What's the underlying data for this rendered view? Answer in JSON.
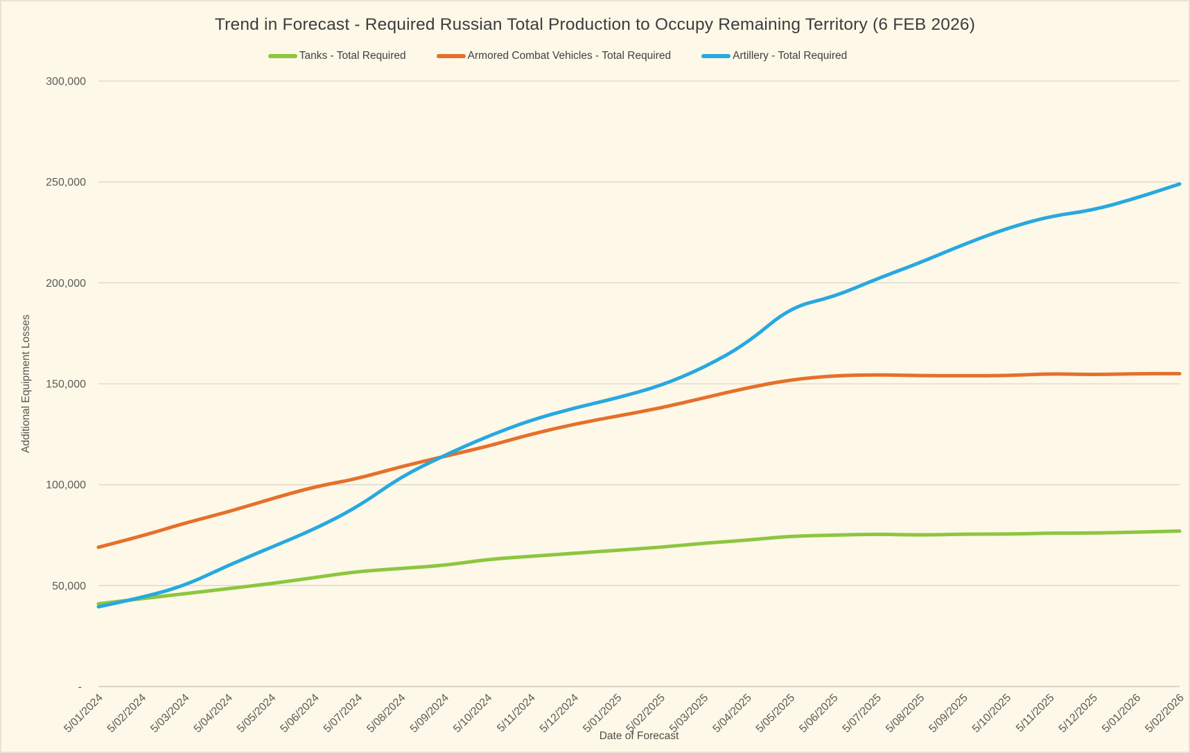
{
  "title": "Trend in Forecast - Required Russian Total Production to Occupy Remaining Territory (6 FEB 2026)",
  "y_axis": {
    "title": "Additional Equipment Losses",
    "step": 50000,
    "tick_labels": [
      "-",
      "50,000",
      "100,000",
      "150,000",
      "200,000",
      "250,000",
      "300,000"
    ]
  },
  "x_axis": {
    "title": "Date of Forecast"
  },
  "colors": {
    "background": "#FDF8E8",
    "gridline": "#DAD8CF",
    "axis_line": "#C9C7BD",
    "tick_text": "#5B5B57",
    "title_text": "#3C3C3C",
    "tanks_green": "#8DC63F",
    "acv_orange": "#E5702B",
    "artillery_blue": "#28A8E0"
  },
  "chart_data": {
    "type": "line",
    "title": "Trend in Forecast - Required Russian Total Production to Occupy Remaining Territory (6 FEB 2026)",
    "xlabel": "Date of Forecast",
    "ylabel": "Additional Equipment Losses",
    "ylim": [
      0,
      300000
    ],
    "grid": true,
    "legend_position": "top",
    "x": [
      "5/01/2024",
      "5/02/2024",
      "5/03/2024",
      "5/04/2024",
      "5/05/2024",
      "5/06/2024",
      "5/07/2024",
      "5/08/2024",
      "5/09/2024",
      "5/10/2024",
      "5/11/2024",
      "5/12/2024",
      "5/01/2025",
      "5/02/2025",
      "5/03/2025",
      "5/04/2025",
      "5/05/2025",
      "5/06/2025",
      "5/07/2025",
      "5/08/2025",
      "5/09/2025",
      "5/10/2025",
      "5/11/2025",
      "5/12/2025",
      "5/01/2026",
      "5/02/2026"
    ],
    "series": [
      {
        "name": "Tanks - Total Required",
        "color": "#8DC63F",
        "values": [
          41000,
          43500,
          46000,
          48500,
          51000,
          54000,
          57000,
          58500,
          60000,
          63000,
          64500,
          66000,
          67500,
          69000,
          71000,
          72500,
          74500,
          75000,
          75500,
          75000,
          75500,
          75500,
          76000,
          76000,
          76500,
          77000
        ]
      },
      {
        "name": "Armored Combat Vehicles - Total Required",
        "color": "#E5702B",
        "values": [
          69000,
          74500,
          81000,
          86500,
          93000,
          99000,
          103000,
          109000,
          114000,
          119000,
          125000,
          130000,
          134000,
          138000,
          143000,
          148000,
          152000,
          154000,
          154500,
          154000,
          154000,
          154000,
          155000,
          154500,
          155000,
          155000
        ]
      },
      {
        "name": "Artillery - Total Required",
        "color": "#28A8E0",
        "values": [
          39500,
          44000,
          50000,
          60000,
          69000,
          78000,
          89000,
          104000,
          114500,
          124000,
          132000,
          138000,
          143000,
          149000,
          158000,
          170000,
          188000,
          193000,
          202000,
          210000,
          219000,
          227000,
          233000,
          236000,
          242000,
          249000
        ]
      }
    ]
  }
}
